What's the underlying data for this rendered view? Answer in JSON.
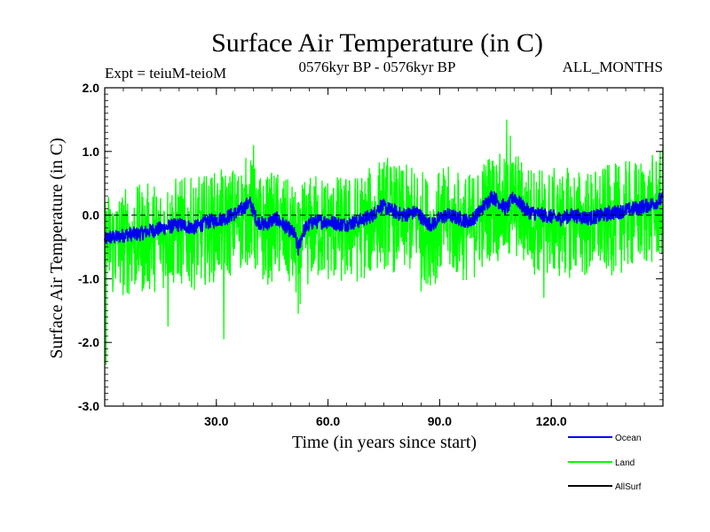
{
  "chart_data": {
    "type": "line",
    "title": "Surface Air Temperature (in C)",
    "subtitle_left": "Expt = teiuM-teioM",
    "subtitle_center": "0576kyr BP - 0576kyr BP",
    "subtitle_right": "ALL_MONTHS",
    "xlabel": "Time (in years since start)",
    "ylabel": "Surface Air Temperature (in C)",
    "xlim": [
      0,
      150
    ],
    "ylim": [
      -3.0,
      2.0
    ],
    "xticks": [
      30,
      60,
      90,
      120
    ],
    "xtick_labels": [
      "30.0",
      "60.0",
      "90.0",
      "120.0"
    ],
    "yticks": [
      2.0,
      1.0,
      0.0,
      -1.0,
      -2.0,
      -3.0
    ],
    "ytick_labels": [
      "2.0",
      "1.0",
      "0.0",
      "-1.0",
      "-2.0",
      "-3.0"
    ],
    "zero_line": 0.0,
    "grid": false,
    "legend_position": "bottom-right",
    "series": [
      {
        "name": "Ocean",
        "color": "#0000ee",
        "anchors_x": [
          0,
          1,
          3,
          6,
          9,
          12,
          16,
          20,
          24,
          28,
          32,
          36,
          38,
          39,
          40,
          41,
          43,
          46,
          49,
          51,
          52,
          53,
          54,
          56,
          60,
          64,
          68,
          72,
          74,
          76,
          80,
          84,
          86,
          88,
          90,
          92,
          95,
          98,
          100,
          102,
          104,
          106,
          108,
          110,
          112,
          114,
          118,
          122,
          126,
          130,
          134,
          138,
          142,
          146,
          150
        ],
        "anchors_y": [
          -0.4,
          -0.35,
          -0.35,
          -0.3,
          -0.3,
          -0.25,
          -0.2,
          -0.15,
          -0.2,
          -0.1,
          -0.05,
          0.05,
          0.15,
          0.2,
          0.05,
          -0.1,
          -0.15,
          -0.05,
          -0.2,
          -0.3,
          -0.55,
          -0.3,
          -0.2,
          -0.1,
          -0.1,
          -0.15,
          -0.1,
          0.0,
          0.15,
          0.1,
          0.0,
          0.05,
          -0.1,
          -0.15,
          -0.05,
          0.0,
          -0.05,
          -0.1,
          0.0,
          0.15,
          0.3,
          0.2,
          0.1,
          0.3,
          0.15,
          0.05,
          0.0,
          -0.05,
          0.0,
          -0.05,
          0.0,
          0.05,
          0.1,
          0.15,
          0.25
        ],
        "noise_amplitude": 0.12
      },
      {
        "name": "Land",
        "color": "#00ff00",
        "noise_amplitude": 0.55,
        "extremes": [
          [
            0.3,
            -2.35
          ],
          [
            17,
            -1.75
          ],
          [
            32,
            -1.95
          ],
          [
            40,
            1.1
          ],
          [
            52,
            -1.55
          ],
          [
            76,
            0.9
          ],
          [
            85,
            -1.2
          ],
          [
            108,
            1.5
          ],
          [
            109,
            1.25
          ],
          [
            118,
            -1.3
          ],
          [
            150,
            1.1
          ]
        ]
      },
      {
        "name": "AllSurf",
        "color": "#000000",
        "values": []
      }
    ]
  }
}
